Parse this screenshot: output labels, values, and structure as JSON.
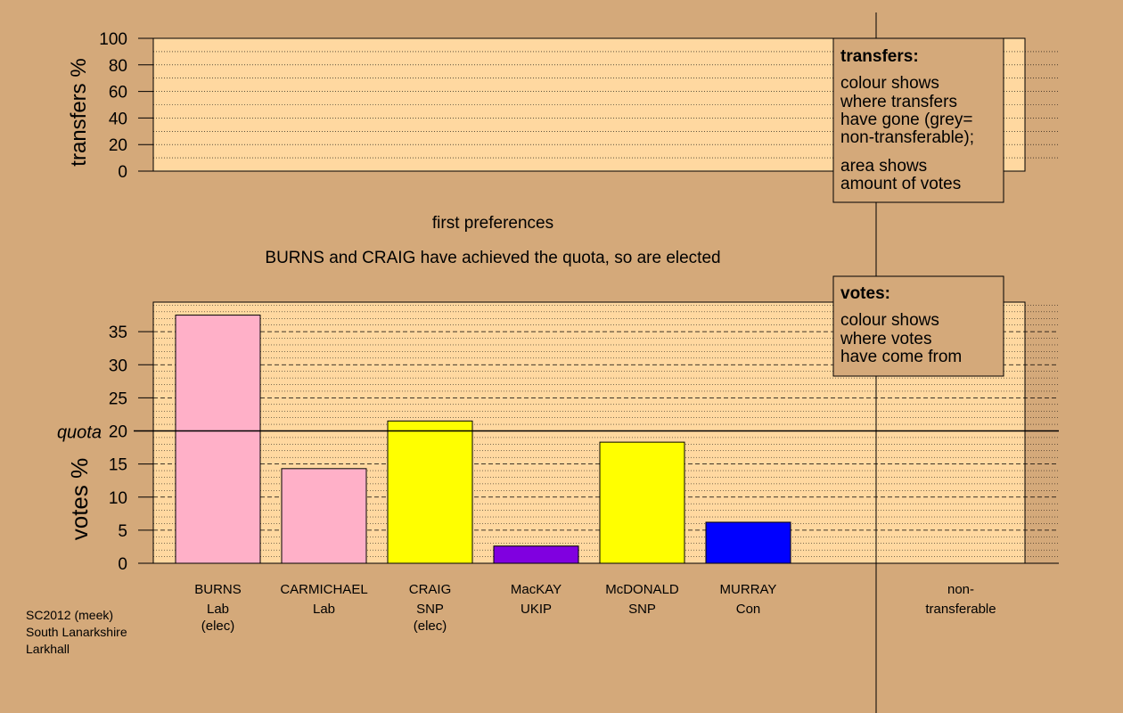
{
  "upper_panel": {
    "ylabel": "transfers %",
    "ticks": [
      "0",
      "20",
      "40",
      "60",
      "80",
      "100"
    ]
  },
  "stage_label": "first preferences",
  "status_text": "BURNS and CRAIG have achieved the quota, so are elected",
  "legend_transfers": {
    "title": "transfers:",
    "lines1": [
      "colour shows",
      "where transfers",
      "have gone (grey=",
      "non-transferable);"
    ],
    "lines2": [
      "area shows",
      "amount of votes"
    ]
  },
  "legend_votes": {
    "title": "votes:",
    "lines": [
      "colour shows",
      "where votes",
      "have come from"
    ]
  },
  "footer": [
    "SC2012 (meek)",
    "South Lanarkshire",
    "Larkhall"
  ],
  "nontransferable_label": [
    "non-",
    "transferable"
  ],
  "colors": {
    "background": "#d4a97a",
    "plot_bg": "#ffd8a0",
    "Lab": "#ffb0c8",
    "SNP": "#ffff00",
    "UKIP": "#8000e0",
    "Con": "#0000ff"
  },
  "chart_data": {
    "type": "bar",
    "ylabel": "votes %",
    "ylim": [
      0,
      40
    ],
    "yticks": [
      0,
      5,
      10,
      15,
      20,
      25,
      30,
      35
    ],
    "quota": 20,
    "quota_label": "quota",
    "candidates": [
      {
        "name": "BURNS",
        "party": "Lab",
        "status": "(elec)",
        "value": 37.5
      },
      {
        "name": "CARMICHAEL",
        "party": "Lab",
        "status": "",
        "value": 14.3
      },
      {
        "name": "CRAIG",
        "party": "SNP",
        "status": "(elec)",
        "value": 21.5
      },
      {
        "name": "MacKAY",
        "party": "UKIP",
        "status": "",
        "value": 2.6
      },
      {
        "name": "McDONALD",
        "party": "SNP",
        "status": "",
        "value": 18.3
      },
      {
        "name": "MURRAY",
        "party": "Con",
        "status": "",
        "value": 6.2
      }
    ]
  }
}
